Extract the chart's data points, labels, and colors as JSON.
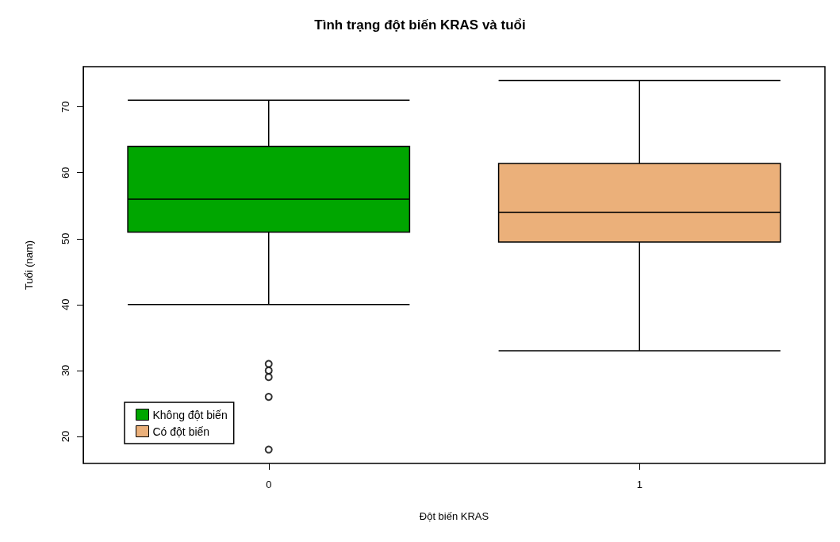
{
  "chart_data": {
    "type": "box",
    "title": "Tình trạng đột biến KRAS và tuổi",
    "xlabel": "Đột biến KRAS",
    "ylabel": "Tuổi (nam)",
    "categories": [
      "0",
      "1"
    ],
    "series": [
      {
        "name": "Không đột biến",
        "color": "#00a600",
        "boxes": [
          {
            "low": 40,
            "q1": 51,
            "median": 56,
            "q3": 64,
            "high": 71,
            "outliers": [
              31,
              30,
              29,
              26,
              18
            ]
          },
          null
        ]
      },
      {
        "name": "Có đột biến",
        "color": "#ebb07a",
        "boxes": [
          null,
          {
            "low": 33,
            "q1": 49.5,
            "median": 54,
            "q3": 61.4,
            "high": 74
          }
        ]
      }
    ],
    "ylim": [
      15.9,
      76.1
    ],
    "yticks": [
      20,
      30,
      40,
      50,
      60,
      70
    ],
    "grid": false,
    "legend": "bottom left",
    "marker": "circle"
  }
}
